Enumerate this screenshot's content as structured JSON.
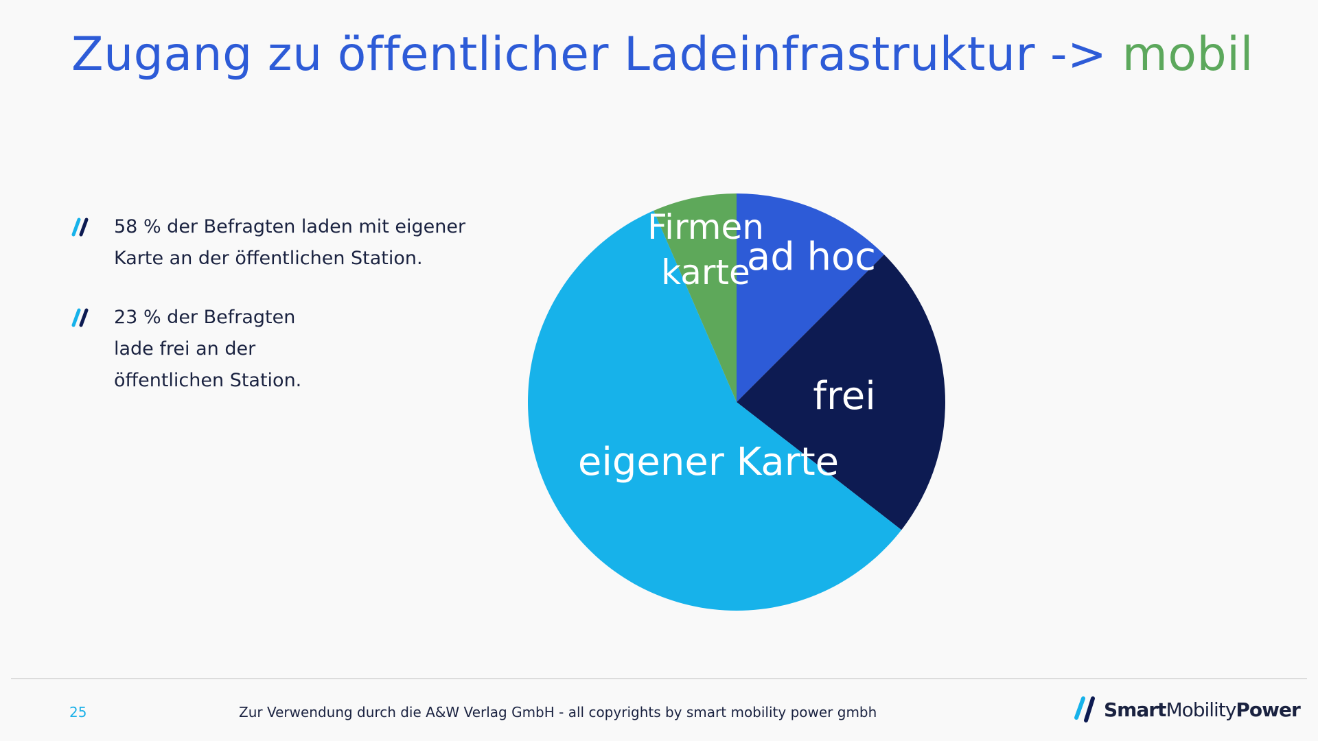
{
  "header": {
    "title_main": "Zugang zu öffentlicher Ladeinfrastruktur ->",
    "title_accent": "mobil"
  },
  "bullets": [
    {
      "icon": "double-slash-bullet-icon",
      "text": "58 % der Befragten laden mit eigener\nKarte an der öffentlichen Station."
    },
    {
      "icon": "double-slash-bullet-icon",
      "text": "23 % der Befragten\nlade frei an der\nöffentlichen Station."
    }
  ],
  "chart_data": {
    "type": "pie",
    "title": "",
    "slices": [
      {
        "label": "ad hoc",
        "value": 12.5,
        "color": "#2d5bd7"
      },
      {
        "label": "frei",
        "value": 23,
        "color": "#0d1b52"
      },
      {
        "label": "eigener Karte",
        "value": 58,
        "color": "#17b2ea"
      },
      {
        "label": "Firmen\nkarte",
        "value": 6.5,
        "color": "#5ea85a"
      }
    ],
    "legend": "none"
  },
  "footer": {
    "page_number": "25",
    "note": "Zur Verwendung durch die A&W Verlag GmbH  - all copyrights by smart mobility power gmbh",
    "logo_smart": "Smart",
    "logo_mobility": "Mobility",
    "logo_power": "Power"
  },
  "colors": {
    "title": "#2d5bd7",
    "accent": "#5ca85c",
    "text": "#1a2240",
    "page_number": "#1ab0e8"
  }
}
